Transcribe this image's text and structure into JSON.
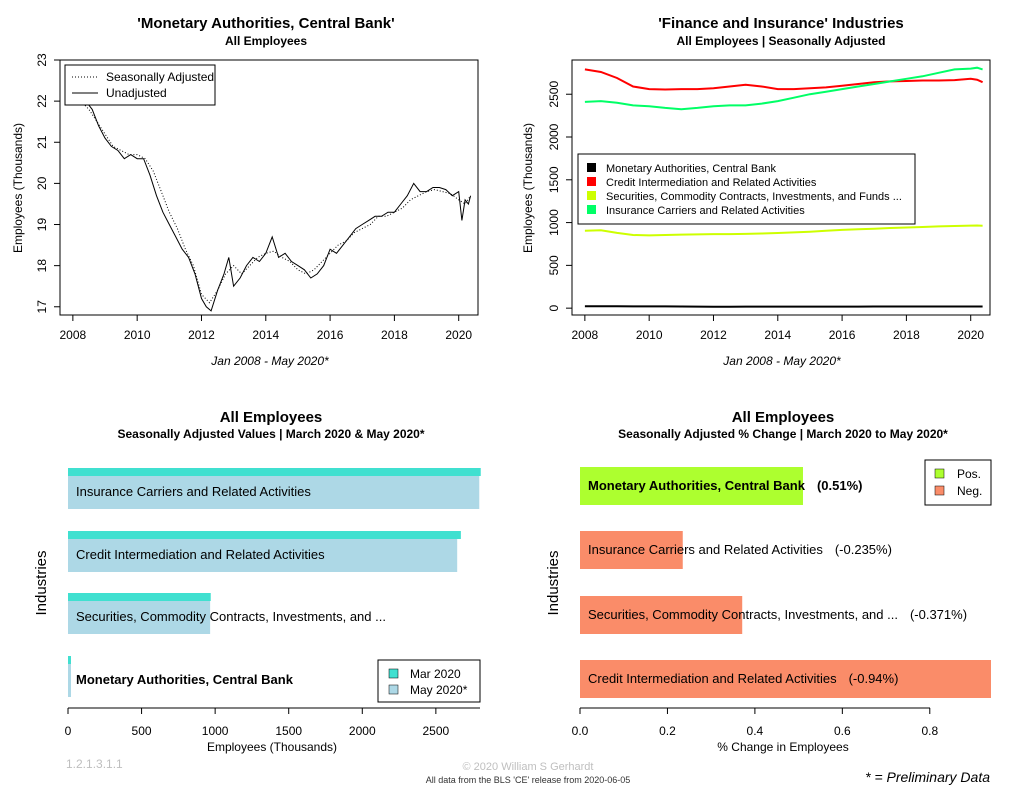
{
  "chart_data": [
    {
      "type": "line",
      "title": "'Monetary Authorities, Central Bank'",
      "subtitle": "All Employees",
      "xlabel": "Jan 2008 - May 2020*",
      "ylabel": "Employees (Thousands)",
      "xlim": [
        2007.6,
        2020.6
      ],
      "ylim": [
        16.8,
        23.0
      ],
      "xticks": [
        2008,
        2010,
        2012,
        2014,
        2016,
        2018,
        2020
      ],
      "xtick_labels": [
        "2008",
        "2010",
        "2012",
        "2014",
        "2016",
        "2018",
        "2020"
      ],
      "yticks": [
        17,
        18,
        19,
        20,
        21,
        22,
        23
      ],
      "ytick_labels": [
        "17",
        "18",
        "19",
        "20",
        "21",
        "22",
        "23"
      ],
      "legend": {
        "position": "top-left",
        "entries": [
          "Seasonally Adjusted",
          "Unadjusted"
        ]
      },
      "grid": false,
      "series": [
        {
          "name": "Seasonally Adjusted",
          "style": "dotted",
          "x": [
            2008.0,
            2008.25,
            2008.5,
            2008.75,
            2009.0,
            2009.25,
            2009.5,
            2009.75,
            2010.0,
            2010.25,
            2010.5,
            2010.75,
            2011.0,
            2011.25,
            2011.5,
            2011.75,
            2012.0,
            2012.25,
            2012.5,
            2012.75,
            2013.0,
            2013.25,
            2013.5,
            2013.75,
            2014.0,
            2014.25,
            2014.5,
            2014.75,
            2015.0,
            2015.25,
            2015.5,
            2015.75,
            2016.0,
            2016.25,
            2016.5,
            2016.75,
            2017.0,
            2017.25,
            2017.5,
            2017.75,
            2018.0,
            2018.25,
            2018.5,
            2018.75,
            2019.0,
            2019.25,
            2019.5,
            2019.75,
            2020.0,
            2020.2,
            2020.37
          ],
          "y": [
            22.1,
            22.0,
            21.8,
            21.5,
            21.2,
            20.9,
            20.8,
            20.7,
            20.7,
            20.6,
            20.3,
            19.8,
            19.3,
            18.9,
            18.4,
            18.0,
            17.3,
            17.1,
            17.4,
            17.8,
            18.0,
            17.8,
            18.0,
            18.2,
            18.3,
            18.35,
            18.2,
            18.1,
            17.9,
            17.8,
            17.9,
            18.1,
            18.3,
            18.5,
            18.6,
            18.8,
            18.9,
            19.0,
            19.2,
            19.2,
            19.3,
            19.4,
            19.6,
            19.7,
            19.8,
            19.85,
            19.8,
            19.75,
            19.6,
            19.5,
            19.7
          ]
        },
        {
          "name": "Unadjusted",
          "style": "solid",
          "x": [
            2008.0,
            2008.2,
            2008.4,
            2008.6,
            2008.8,
            2009.0,
            2009.2,
            2009.4,
            2009.6,
            2009.8,
            2010.0,
            2010.2,
            2010.4,
            2010.6,
            2010.8,
            2011.0,
            2011.2,
            2011.4,
            2011.6,
            2011.8,
            2012.0,
            2012.15,
            2012.3,
            2012.5,
            2012.7,
            2012.85,
            2013.0,
            2013.2,
            2013.4,
            2013.6,
            2013.8,
            2014.0,
            2014.2,
            2014.4,
            2014.6,
            2014.8,
            2015.0,
            2015.2,
            2015.4,
            2015.6,
            2015.8,
            2016.0,
            2016.2,
            2016.4,
            2016.6,
            2016.8,
            2017.0,
            2017.2,
            2017.4,
            2017.6,
            2017.8,
            2018.0,
            2018.2,
            2018.4,
            2018.6,
            2018.8,
            2019.0,
            2019.2,
            2019.4,
            2019.6,
            2019.8,
            2020.0,
            2020.1,
            2020.2,
            2020.3,
            2020.37
          ],
          "y": [
            22.1,
            22.2,
            22.0,
            21.8,
            21.4,
            21.1,
            20.9,
            20.8,
            20.6,
            20.7,
            20.6,
            20.6,
            20.2,
            19.7,
            19.3,
            19.0,
            18.7,
            18.4,
            18.2,
            17.8,
            17.2,
            17.0,
            16.9,
            17.4,
            17.8,
            18.2,
            17.5,
            17.7,
            18.0,
            18.2,
            18.1,
            18.3,
            18.7,
            18.2,
            18.3,
            18.1,
            18.0,
            17.9,
            17.7,
            17.8,
            18.0,
            18.4,
            18.3,
            18.5,
            18.7,
            18.9,
            19.0,
            19.1,
            19.2,
            19.2,
            19.3,
            19.3,
            19.5,
            19.7,
            20.0,
            19.8,
            19.8,
            19.9,
            19.9,
            19.85,
            19.7,
            19.8,
            19.1,
            19.6,
            19.5,
            19.7
          ]
        }
      ]
    },
    {
      "type": "line",
      "title": "'Finance and Insurance' Industries",
      "subtitle": "All Employees | Seasonally Adjusted",
      "xlabel": "Jan 2008 - May 2020*",
      "ylabel": "Employees (Thousands)",
      "xlim": [
        2007.6,
        2020.6
      ],
      "ylim": [
        -80,
        2900
      ],
      "xticks": [
        2008,
        2010,
        2012,
        2014,
        2016,
        2018,
        2020
      ],
      "xtick_labels": [
        "2008",
        "2010",
        "2012",
        "2014",
        "2016",
        "2018",
        "2020"
      ],
      "yticks": [
        0,
        500,
        1000,
        1500,
        2000,
        2500
      ],
      "ytick_labels": [
        "0",
        "500",
        "1000",
        "1500",
        "2000",
        "2500"
      ],
      "legend": {
        "position": "left",
        "entries": [
          "Monetary Authorities, Central Bank",
          "Credit Intermediation and Related Activities",
          "Securities, Commodity Contracts, Investments, and Funds ...",
          "Insurance Carriers and Related Activities"
        ]
      },
      "grid": false,
      "x": [
        2008,
        2008.5,
        2009,
        2009.5,
        2010,
        2010.5,
        2011,
        2011.5,
        2012,
        2012.5,
        2013,
        2013.5,
        2014,
        2014.5,
        2015,
        2015.5,
        2016,
        2016.5,
        2017,
        2017.5,
        2018,
        2018.5,
        2019,
        2019.5,
        2020,
        2020.2,
        2020.37
      ],
      "series": [
        {
          "name": "Monetary Authorities, Central Bank",
          "color": "#000000",
          "values": [
            22,
            21.8,
            21.2,
            20.8,
            20.7,
            20.3,
            19.3,
            18.4,
            17.3,
            17.4,
            18.0,
            18.0,
            18.3,
            18.2,
            17.9,
            17.9,
            18.3,
            18.6,
            18.9,
            19.2,
            19.3,
            19.6,
            19.8,
            19.8,
            19.6,
            19.5,
            19.7
          ]
        },
        {
          "name": "Credit Intermediation and Related Activities",
          "color": "#ff0000",
          "values": [
            2790,
            2760,
            2690,
            2590,
            2560,
            2555,
            2560,
            2560,
            2570,
            2590,
            2610,
            2590,
            2560,
            2560,
            2570,
            2580,
            2600,
            2620,
            2640,
            2650,
            2655,
            2660,
            2660,
            2665,
            2680,
            2670,
            2640
          ]
        },
        {
          "name": "Securities, Commodity Contracts, Investments, and Funds ...",
          "color": "#cdff00",
          "values": [
            905,
            910,
            880,
            855,
            850,
            855,
            860,
            862,
            865,
            866,
            868,
            872,
            878,
            885,
            893,
            905,
            915,
            922,
            928,
            937,
            943,
            948,
            955,
            960,
            965,
            966,
            962
          ]
        },
        {
          "name": "Insurance Carriers and Related Activities",
          "color": "#00ff66",
          "values": [
            2410,
            2420,
            2400,
            2370,
            2360,
            2340,
            2325,
            2340,
            2360,
            2370,
            2370,
            2390,
            2420,
            2460,
            2500,
            2530,
            2560,
            2590,
            2620,
            2650,
            2680,
            2710,
            2750,
            2790,
            2800,
            2810,
            2790
          ]
        }
      ]
    },
    {
      "type": "bar",
      "orientation": "horizontal",
      "title": "All Employees",
      "subtitle": "Seasonally Adjusted Values | March 2020 & May 2020*",
      "xlabel": "Employees (Thousands)",
      "ylabel": "Industries",
      "xlim": [
        0,
        2800
      ],
      "xticks": [
        0,
        500,
        1000,
        1500,
        2000,
        2500
      ],
      "xtick_labels": [
        "0",
        "500",
        "1000",
        "1500",
        "2000",
        "2500"
      ],
      "categories": [
        "Insurance Carriers and Related Activities",
        "Credit Intermediation and Related Activities",
        "Securities, Commodity Contracts, Investments, and ...",
        "Monetary Authorities, Central Bank"
      ],
      "bold_categories": [
        false,
        false,
        false,
        true
      ],
      "legend": {
        "position": "bottom-right",
        "entries": [
          "Mar 2020",
          "May 2020*"
        ]
      },
      "series": [
        {
          "name": "Mar 2020",
          "color": "#40e0d0",
          "values": [
            2805,
            2670,
            970,
            19.6
          ]
        },
        {
          "name": "May 2020*",
          "color": "#add8e6",
          "values": [
            2795,
            2645,
            966,
            19.7
          ]
        }
      ]
    },
    {
      "type": "bar",
      "orientation": "horizontal",
      "title": "All Employees",
      "subtitle": "Seasonally Adjusted % Change | March 2020 to May 2020*",
      "xlabel": "% Change in Employees",
      "ylabel": "Industries",
      "xlim": [
        0,
        0.94
      ],
      "xticks": [
        0.0,
        0.2,
        0.4,
        0.6,
        0.8
      ],
      "xtick_labels": [
        "0.0",
        "0.2",
        "0.4",
        "0.6",
        "0.8"
      ],
      "categories": [
        "Monetary Authorities, Central Bank",
        "Insurance Carriers and Related Activities",
        "Securities, Commodity Contracts, Investments, and ...",
        "Credit Intermediation and Related Activities"
      ],
      "values": [
        0.51,
        -0.235,
        -0.371,
        -0.94
      ],
      "value_labels": [
        "(0.51%)",
        "(-0.235%)",
        "(-0.371%)",
        "(-0.94%)"
      ],
      "bold_categories": [
        true,
        false,
        false,
        false
      ],
      "legend": {
        "position": "top-right",
        "entries": [
          "Pos.",
          "Neg."
        ]
      },
      "colors": {
        "pos": "#adff2f",
        "neg": "#fa8c69"
      }
    }
  ],
  "footer": {
    "version": "1.2.1.3.1.1",
    "copyright": "© 2020 William S Gerhardt",
    "source": "All data from the BLS 'CE' release from 2020-06-05",
    "note": "* = Preliminary Data"
  }
}
